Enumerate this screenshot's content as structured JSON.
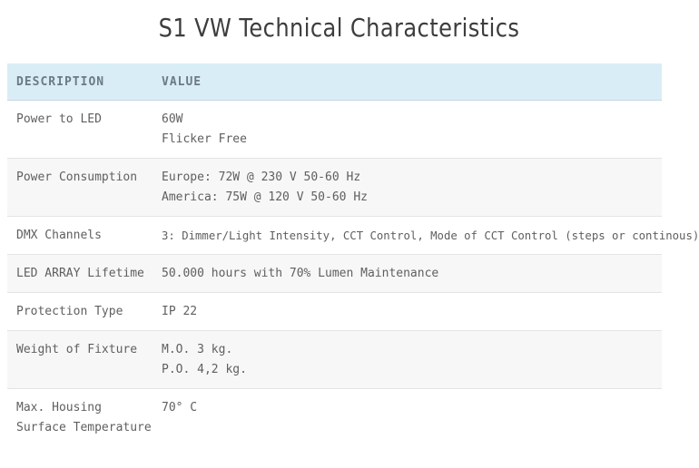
{
  "page": {
    "title": "S1 VW Technical Characteristics"
  },
  "table": {
    "headers": [
      "DESCRIPTION",
      "VALUE"
    ],
    "rows": [
      {
        "label": "Power to LED",
        "values": [
          "60W",
          "Flicker Free"
        ]
      },
      {
        "label": "Power Consumption",
        "values": [
          "Europe: 72W @ 230 V 50-60 Hz",
          "America: 75W @ 120 V 50-60 Hz"
        ]
      },
      {
        "label": "DMX Channels",
        "values": [
          "3: Dimmer/Light Intensity, CCT Control, Mode of CCT Control (steps or continous)"
        ]
      },
      {
        "label": "LED ARRAY Lifetime",
        "values": [
          "50.000 hours with 70% Lumen Maintenance"
        ]
      },
      {
        "label": "Protection Type",
        "values": [
          "IP 22"
        ]
      },
      {
        "label": "Weight of Fixture",
        "values": [
          "M.O. 3 kg.",
          "P.O. 4,2 kg."
        ]
      },
      {
        "label": "Max. Housing Surface Temperature",
        "values": [
          "70° C"
        ]
      }
    ]
  },
  "colors": {
    "header_background": "#d9edf7",
    "header_text": "#6c7a86",
    "title_text": "#3d3d3d",
    "body_text": "#5f5f5f",
    "row_stripe": "#f7f7f7"
  }
}
